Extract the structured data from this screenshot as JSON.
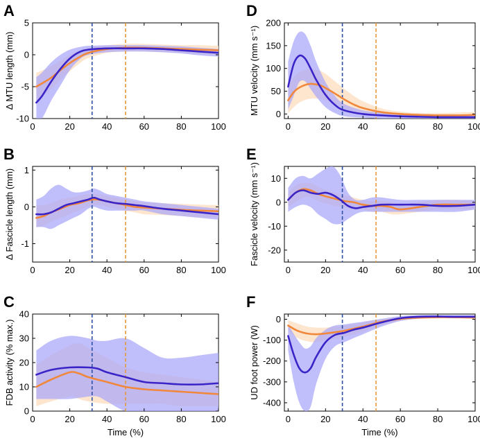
{
  "figure": {
    "colors": {
      "blue_line": "#3a24c8",
      "blue_band": "#a9a6fa",
      "orange_line": "#f0873a",
      "orange_band": "#fde1c6",
      "blue_dash": "#2b4fa3",
      "orange_dash": "#e59a3a"
    },
    "series_names": [
      "blue",
      "orange"
    ]
  },
  "chart_data": [
    {
      "id": "A",
      "letter": "A",
      "type": "line",
      "ylabel": "Δ MTU length (mm)",
      "xlabel": "",
      "xlim": [
        0,
        100
      ],
      "ylim": [
        -10,
        5
      ],
      "xticks": [
        0,
        20,
        40,
        60,
        80,
        100
      ],
      "yticks": [
        -10,
        -5,
        0,
        5
      ],
      "xticklabels": [
        "0",
        "20",
        "40",
        "60",
        "80",
        "100"
      ],
      "yticklabels": [
        "-10",
        "-5",
        "0",
        "5"
      ],
      "vlines": [
        {
          "series": "blue",
          "x": 32
        },
        {
          "series": "orange",
          "x": 50
        }
      ],
      "series": [
        {
          "name": "blue",
          "x": [
            2,
            5,
            10,
            15,
            20,
            25,
            30,
            40,
            50,
            60,
            70,
            80,
            90,
            100
          ],
          "mean": [
            -7.5,
            -6.5,
            -4.2,
            -2.2,
            -0.6,
            0.4,
            0.8,
            1.0,
            1.0,
            1.0,
            0.9,
            0.7,
            0.5,
            0.3
          ],
          "upper": [
            -3.5,
            -2.8,
            -1.2,
            0.0,
            0.8,
            1.2,
            1.4,
            1.5,
            1.5,
            1.5,
            1.4,
            1.3,
            1.1,
            0.9
          ],
          "lower": [
            -10.0,
            -10.0,
            -7.2,
            -4.8,
            -2.4,
            -0.8,
            0.0,
            0.4,
            0.5,
            0.5,
            0.4,
            0.2,
            -0.1,
            -0.3
          ]
        },
        {
          "name": "orange",
          "x": [
            2,
            5,
            10,
            15,
            20,
            25,
            30,
            40,
            50,
            60,
            70,
            80,
            90,
            100
          ],
          "mean": [
            -5.0,
            -4.5,
            -3.6,
            -2.4,
            -1.3,
            -0.4,
            0.3,
            0.9,
            1.1,
            1.1,
            1.0,
            0.9,
            0.8,
            0.7
          ],
          "upper": [
            -2.8,
            -2.5,
            -1.8,
            -0.9,
            0.0,
            0.6,
            1.1,
            1.5,
            1.7,
            1.7,
            1.6,
            1.5,
            1.5,
            1.4
          ],
          "lower": [
            -7.2,
            -6.5,
            -5.4,
            -3.9,
            -2.6,
            -1.4,
            -0.5,
            0.3,
            0.5,
            0.5,
            0.4,
            0.3,
            0.1,
            0.0
          ]
        }
      ]
    },
    {
      "id": "B",
      "letter": "B",
      "type": "line",
      "ylabel": "Δ Fascicle length (mm)",
      "xlabel": "",
      "xlim": [
        0,
        100
      ],
      "ylim": [
        -1.5,
        1.1
      ],
      "xticks": [
        0,
        20,
        40,
        60,
        80,
        100
      ],
      "yticks": [
        -1,
        0,
        1
      ],
      "xticklabels": [
        "0",
        "20",
        "40",
        "60",
        "80",
        "100"
      ],
      "yticklabels": [
        "-1",
        "0",
        "1"
      ],
      "vlines": [
        {
          "series": "blue",
          "x": 32
        },
        {
          "series": "orange",
          "x": 50
        }
      ],
      "series": [
        {
          "name": "blue",
          "x": [
            2,
            6,
            10,
            14,
            18,
            22,
            26,
            30,
            33,
            36,
            40,
            45,
            50,
            55,
            60,
            70,
            80,
            90,
            100
          ],
          "mean": [
            -0.2,
            -0.2,
            -0.15,
            -0.05,
            0.05,
            0.1,
            0.15,
            0.2,
            0.25,
            0.2,
            0.15,
            0.1,
            0.08,
            0.05,
            0.02,
            -0.05,
            -0.1,
            -0.15,
            -0.2
          ],
          "upper": [
            0.2,
            0.3,
            0.5,
            0.6,
            0.5,
            0.4,
            0.4,
            0.45,
            0.5,
            0.45,
            0.35,
            0.3,
            0.25,
            0.2,
            0.15,
            0.1,
            0.05,
            0.0,
            -0.05
          ],
          "lower": [
            -0.55,
            -0.55,
            -0.6,
            -0.5,
            -0.4,
            -0.3,
            -0.2,
            -0.05,
            0.0,
            -0.05,
            -0.1,
            -0.1,
            -0.1,
            -0.1,
            -0.1,
            -0.2,
            -0.25,
            -0.3,
            -0.35
          ]
        },
        {
          "name": "orange",
          "x": [
            2,
            6,
            10,
            15,
            20,
            25,
            30,
            35,
            40,
            45,
            50,
            55,
            60,
            70,
            80,
            90,
            100
          ],
          "mean": [
            -0.3,
            -0.25,
            -0.15,
            -0.05,
            0.05,
            0.1,
            0.18,
            0.2,
            0.15,
            0.1,
            0.05,
            0.0,
            -0.02,
            -0.05,
            -0.08,
            -0.1,
            -0.12
          ],
          "upper": [
            0.05,
            0.05,
            0.1,
            0.2,
            0.25,
            0.3,
            0.35,
            0.35,
            0.3,
            0.25,
            0.2,
            0.15,
            0.12,
            0.1,
            0.08,
            0.06,
            0.05
          ],
          "lower": [
            -0.55,
            -0.5,
            -0.4,
            -0.3,
            -0.2,
            -0.1,
            0.0,
            0.05,
            0.0,
            -0.05,
            -0.1,
            -0.15,
            -0.2,
            -0.22,
            -0.25,
            -0.28,
            -0.3
          ]
        }
      ]
    },
    {
      "id": "C",
      "letter": "C",
      "type": "line",
      "ylabel": "FDB activity (% max.)",
      "xlabel": "Time (%)",
      "xlim": [
        0,
        100
      ],
      "ylim": [
        0,
        40
      ],
      "xticks": [
        0,
        20,
        40,
        60,
        80,
        100
      ],
      "yticks": [
        0,
        10,
        20,
        30,
        40
      ],
      "xticklabels": [
        "0",
        "20",
        "40",
        "60",
        "80",
        "100"
      ],
      "yticklabels": [
        "0",
        "10",
        "20",
        "30",
        "40"
      ],
      "vlines": [
        {
          "series": "blue",
          "x": 32
        },
        {
          "series": "orange",
          "x": 50
        }
      ],
      "series": [
        {
          "name": "blue",
          "x": [
            2,
            10,
            20,
            30,
            35,
            40,
            50,
            60,
            70,
            80,
            90,
            100
          ],
          "mean": [
            15,
            17,
            18,
            18,
            17.5,
            16,
            14,
            12,
            11.5,
            11,
            11,
            11.5
          ],
          "upper": [
            25,
            29,
            31,
            30,
            29,
            29,
            30,
            26,
            22,
            22,
            23,
            24
          ],
          "lower": [
            5,
            5,
            5,
            6,
            6,
            4,
            0,
            0,
            0,
            0,
            0,
            0
          ]
        },
        {
          "name": "orange",
          "x": [
            2,
            10,
            20,
            25,
            30,
            40,
            50,
            60,
            70,
            80,
            90,
            100
          ],
          "mean": [
            10,
            13,
            16,
            15.5,
            14,
            12,
            10,
            9,
            8.5,
            8,
            7.5,
            7
          ],
          "upper": [
            19,
            23,
            27,
            28,
            26,
            22,
            18,
            16,
            15,
            14,
            13,
            12
          ],
          "lower": [
            2,
            4,
            6,
            5,
            4,
            3,
            3,
            3,
            3,
            2,
            2,
            2
          ]
        }
      ]
    },
    {
      "id": "D",
      "letter": "D",
      "type": "line",
      "ylabel": "MTU velocity (mm s⁻¹)",
      "xlabel": "",
      "xlim": [
        -2,
        100
      ],
      "ylim": [
        -10,
        200
      ],
      "xticks": [
        0,
        20,
        40,
        60,
        80,
        100
      ],
      "yticks": [
        0,
        50,
        100,
        150,
        200
      ],
      "xticklabels": [
        "0",
        "20",
        "40",
        "60",
        "80",
        "100"
      ],
      "yticklabels": [
        "0",
        "50",
        "100",
        "150",
        "200"
      ],
      "vlines": [
        {
          "series": "blue",
          "x": 29
        },
        {
          "series": "orange",
          "x": 47
        }
      ],
      "series": [
        {
          "name": "blue",
          "x": [
            0,
            3,
            6,
            9,
            12,
            15,
            20,
            25,
            30,
            40,
            50,
            60,
            70,
            80,
            90,
            100
          ],
          "mean": [
            60,
            110,
            128,
            122,
            100,
            75,
            42,
            20,
            8,
            0,
            -3,
            -5,
            -6,
            -7,
            -7,
            -7
          ],
          "upper": [
            115,
            160,
            180,
            176,
            150,
            115,
            70,
            40,
            22,
            8,
            3,
            1,
            0,
            -1,
            -1,
            -1
          ],
          "lower": [
            10,
            40,
            70,
            72,
            55,
            38,
            15,
            2,
            -5,
            -8,
            -10,
            -10,
            -10,
            -10,
            -10,
            -10
          ]
        },
        {
          "name": "orange",
          "x": [
            0,
            3,
            6,
            10,
            13,
            17,
            20,
            25,
            30,
            35,
            40,
            50,
            60,
            70,
            80,
            90,
            100
          ],
          "mean": [
            30,
            48,
            58,
            65,
            66,
            63,
            57,
            45,
            32,
            21,
            13,
            4,
            0,
            -2,
            -3,
            -3,
            -2
          ],
          "upper": [
            60,
            80,
            92,
            98,
            98,
            95,
            88,
            72,
            55,
            40,
            28,
            12,
            5,
            2,
            2,
            3,
            4
          ],
          "lower": [
            2,
            15,
            25,
            32,
            34,
            33,
            30,
            22,
            12,
            5,
            1,
            -4,
            -6,
            -7,
            -7,
            -7,
            -7
          ]
        }
      ]
    },
    {
      "id": "E",
      "letter": "E",
      "type": "line",
      "ylabel": "Fascicle velocity (mm s⁻¹)",
      "xlabel": "",
      "xlim": [
        -2,
        100
      ],
      "ylim": [
        -25,
        15
      ],
      "xticks": [
        0,
        20,
        40,
        60,
        80,
        100
      ],
      "yticks": [
        -20,
        -10,
        0,
        10
      ],
      "xticklabels": [
        "0",
        "20",
        "40",
        "60",
        "80",
        "100"
      ],
      "yticklabels": [
        "-20",
        "-10",
        "0",
        "10"
      ],
      "vlines": [
        {
          "series": "blue",
          "x": 29
        },
        {
          "series": "orange",
          "x": 47
        }
      ],
      "series": [
        {
          "name": "blue",
          "x": [
            0,
            4,
            8,
            12,
            16,
            20,
            24,
            28,
            32,
            36,
            40,
            45,
            50,
            60,
            70,
            80,
            90,
            100
          ],
          "mean": [
            1,
            4,
            5,
            4,
            3.5,
            4,
            3,
            1,
            -1.5,
            -2.5,
            -2,
            -1.5,
            -1,
            -1,
            -1,
            -1.5,
            -1.5,
            -1
          ],
          "upper": [
            6,
            10,
            11,
            10,
            12,
            14,
            15,
            11,
            4,
            1,
            1,
            2,
            2,
            1,
            1,
            1,
            1,
            1
          ],
          "lower": [
            -4,
            -2,
            -1,
            -2,
            -5,
            -7,
            -9,
            -9,
            -7,
            -5,
            -4,
            -4,
            -4,
            -4,
            -4,
            -4,
            -4,
            -3
          ]
        },
        {
          "name": "orange",
          "x": [
            0,
            4,
            8,
            12,
            16,
            20,
            25,
            30,
            35,
            40,
            45,
            50,
            55,
            60,
            70,
            80,
            90,
            100
          ],
          "mean": [
            1,
            4,
            5.5,
            5,
            3.5,
            2.5,
            1.5,
            0.5,
            0,
            -1,
            -1.5,
            -1.5,
            -2,
            -3,
            -2,
            -1,
            -1,
            -1
          ],
          "upper": [
            4,
            7,
            8,
            8,
            6.5,
            5,
            4,
            3,
            2,
            1,
            0.5,
            0.5,
            0,
            -1,
            0,
            1,
            1,
            0.5
          ],
          "lower": [
            -2,
            0,
            2,
            2,
            0.5,
            -0.5,
            -1.5,
            -2,
            -3,
            -3,
            -4,
            -4,
            -5,
            -5,
            -4,
            -3,
            -3,
            -3
          ]
        }
      ]
    },
    {
      "id": "F",
      "letter": "F",
      "type": "line",
      "ylabel": "UD foot power (W)",
      "xlabel": "Time (%)",
      "xlim": [
        -2,
        100
      ],
      "ylim": [
        -440,
        25
      ],
      "xticks": [
        0,
        20,
        40,
        60,
        80,
        100
      ],
      "yticks": [
        -400,
        -300,
        -200,
        -100,
        0
      ],
      "xticklabels": [
        "0",
        "20",
        "40",
        "60",
        "80",
        "100"
      ],
      "yticklabels": [
        "-400",
        "-300",
        "-200",
        "-100",
        "0"
      ],
      "vlines": [
        {
          "series": "blue",
          "x": 29
        },
        {
          "series": "orange",
          "x": 47
        }
      ],
      "series": [
        {
          "name": "blue",
          "x": [
            0,
            3,
            6,
            9,
            12,
            15,
            20,
            25,
            30,
            35,
            40,
            50,
            60,
            70,
            80,
            90,
            100
          ],
          "mean": [
            -80,
            -170,
            -235,
            -255,
            -235,
            -180,
            -110,
            -75,
            -65,
            -50,
            -40,
            -15,
            5,
            12,
            13,
            12,
            12
          ],
          "upper": [
            -25,
            -70,
            -110,
            -140,
            -130,
            -90,
            -50,
            -30,
            -25,
            -18,
            -12,
            2,
            15,
            20,
            20,
            20,
            20
          ],
          "lower": [
            -150,
            -300,
            -400,
            -440,
            -420,
            -310,
            -190,
            -130,
            -110,
            -90,
            -72,
            -35,
            -8,
            3,
            5,
            5,
            5
          ]
        },
        {
          "name": "orange",
          "x": [
            0,
            5,
            10,
            15,
            20,
            25,
            30,
            40,
            50,
            60,
            70,
            80,
            90,
            100
          ],
          "mean": [
            -30,
            -55,
            -68,
            -72,
            -68,
            -62,
            -55,
            -35,
            -12,
            2,
            8,
            10,
            10,
            8
          ],
          "upper": [
            -5,
            -20,
            -35,
            -40,
            -40,
            -35,
            -30,
            -15,
            0,
            10,
            14,
            16,
            16,
            14
          ],
          "lower": [
            -55,
            -90,
            -105,
            -110,
            -100,
            -95,
            -85,
            -60,
            -28,
            -6,
            2,
            4,
            4,
            2
          ]
        }
      ]
    }
  ]
}
